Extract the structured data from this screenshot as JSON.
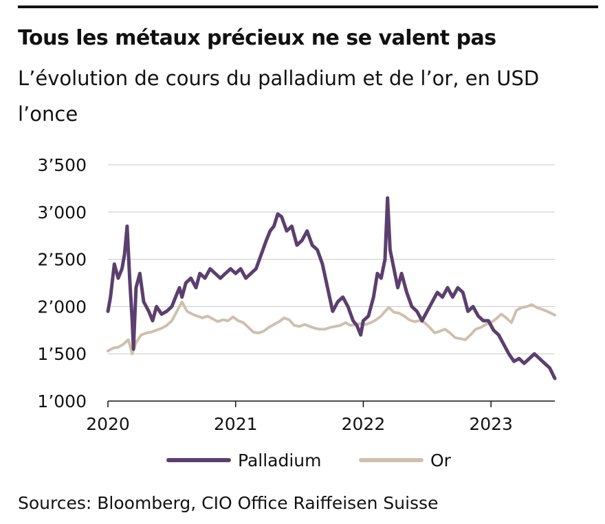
{
  "title": "Tous les métaux précieux ne se valent pas",
  "subtitle": "L’évolution de cours du palladium et de l’or, en USD l’once",
  "source": "Sources: Bloomberg, CIO Office Raiffeisen Suisse",
  "chart_data": {
    "type": "line",
    "title": "Tous les métaux précieux ne se valent pas",
    "subtitle": "L’évolution de cours du palladium et de l’or, en USD l’once",
    "xlabel": "",
    "ylabel": "",
    "xlim": [
      2020.0,
      2023.5
    ],
    "ylim": [
      1000,
      3500
    ],
    "xticks": [
      {
        "value": 2020,
        "label": "2020"
      },
      {
        "value": 2021,
        "label": "2021"
      },
      {
        "value": 2022,
        "label": "2022"
      },
      {
        "value": 2023,
        "label": "2023"
      }
    ],
    "yticks": [
      {
        "value": 1000,
        "label": "1’000"
      },
      {
        "value": 1500,
        "label": "1’500"
      },
      {
        "value": 2000,
        "label": "2’000"
      },
      {
        "value": 2500,
        "label": "2’500"
      },
      {
        "value": 3000,
        "label": "3’000"
      },
      {
        "value": 3500,
        "label": "3’500"
      }
    ],
    "grid": "horizontal",
    "legend_position": "bottom",
    "series": [
      {
        "name": "Palladium",
        "color": "#5b3f6e",
        "points": [
          [
            2020.0,
            1950
          ],
          [
            2020.02,
            2100
          ],
          [
            2020.05,
            2450
          ],
          [
            2020.08,
            2300
          ],
          [
            2020.11,
            2400
          ],
          [
            2020.13,
            2550
          ],
          [
            2020.15,
            2850
          ],
          [
            2020.17,
            2300
          ],
          [
            2020.19,
            1850
          ],
          [
            2020.2,
            1550
          ],
          [
            2020.22,
            2200
          ],
          [
            2020.25,
            2350
          ],
          [
            2020.28,
            2050
          ],
          [
            2020.32,
            1950
          ],
          [
            2020.35,
            1850
          ],
          [
            2020.38,
            2000
          ],
          [
            2020.42,
            1920
          ],
          [
            2020.46,
            1950
          ],
          [
            2020.5,
            2000
          ],
          [
            2020.53,
            2100
          ],
          [
            2020.56,
            2200
          ],
          [
            2020.58,
            2100
          ],
          [
            2020.61,
            2250
          ],
          [
            2020.65,
            2300
          ],
          [
            2020.69,
            2200
          ],
          [
            2020.72,
            2350
          ],
          [
            2020.76,
            2300
          ],
          [
            2020.8,
            2400
          ],
          [
            2020.84,
            2350
          ],
          [
            2020.88,
            2300
          ],
          [
            2020.92,
            2350
          ],
          [
            2020.96,
            2400
          ],
          [
            2021.0,
            2350
          ],
          [
            2021.04,
            2400
          ],
          [
            2021.08,
            2300
          ],
          [
            2021.12,
            2350
          ],
          [
            2021.16,
            2400
          ],
          [
            2021.2,
            2550
          ],
          [
            2021.24,
            2700
          ],
          [
            2021.27,
            2800
          ],
          [
            2021.3,
            2850
          ],
          [
            2021.33,
            2980
          ],
          [
            2021.36,
            2950
          ],
          [
            2021.4,
            2800
          ],
          [
            2021.44,
            2850
          ],
          [
            2021.48,
            2650
          ],
          [
            2021.52,
            2700
          ],
          [
            2021.56,
            2800
          ],
          [
            2021.6,
            2650
          ],
          [
            2021.64,
            2600
          ],
          [
            2021.68,
            2450
          ],
          [
            2021.72,
            2200
          ],
          [
            2021.76,
            1950
          ],
          [
            2021.8,
            2050
          ],
          [
            2021.84,
            2100
          ],
          [
            2021.88,
            2000
          ],
          [
            2021.92,
            1850
          ],
          [
            2021.95,
            1800
          ],
          [
            2021.98,
            1700
          ],
          [
            2022.0,
            1850
          ],
          [
            2022.04,
            1900
          ],
          [
            2022.08,
            2100
          ],
          [
            2022.11,
            2350
          ],
          [
            2022.14,
            2300
          ],
          [
            2022.17,
            2500
          ],
          [
            2022.19,
            3150
          ],
          [
            2022.21,
            2600
          ],
          [
            2022.24,
            2400
          ],
          [
            2022.27,
            2200
          ],
          [
            2022.3,
            2350
          ],
          [
            2022.34,
            2150
          ],
          [
            2022.38,
            2000
          ],
          [
            2022.42,
            1950
          ],
          [
            2022.46,
            1850
          ],
          [
            2022.5,
            1950
          ],
          [
            2022.54,
            2050
          ],
          [
            2022.58,
            2150
          ],
          [
            2022.62,
            2100
          ],
          [
            2022.66,
            2200
          ],
          [
            2022.7,
            2100
          ],
          [
            2022.74,
            2200
          ],
          [
            2022.78,
            2150
          ],
          [
            2022.82,
            1950
          ],
          [
            2022.86,
            2000
          ],
          [
            2022.9,
            1900
          ],
          [
            2022.94,
            1850
          ],
          [
            2022.98,
            1850
          ],
          [
            2023.02,
            1750
          ],
          [
            2023.06,
            1700
          ],
          [
            2023.1,
            1600
          ],
          [
            2023.14,
            1500
          ],
          [
            2023.18,
            1420
          ],
          [
            2023.22,
            1450
          ],
          [
            2023.26,
            1400
          ],
          [
            2023.3,
            1450
          ],
          [
            2023.34,
            1500
          ],
          [
            2023.38,
            1450
          ],
          [
            2023.42,
            1400
          ],
          [
            2023.46,
            1350
          ],
          [
            2023.5,
            1240
          ]
        ]
      },
      {
        "name": "Or",
        "color": "#cfc0ae",
        "points": [
          [
            2020.0,
            1530
          ],
          [
            2020.04,
            1560
          ],
          [
            2020.08,
            1570
          ],
          [
            2020.12,
            1600
          ],
          [
            2020.16,
            1650
          ],
          [
            2020.19,
            1500
          ],
          [
            2020.22,
            1620
          ],
          [
            2020.26,
            1700
          ],
          [
            2020.3,
            1720
          ],
          [
            2020.34,
            1730
          ],
          [
            2020.38,
            1750
          ],
          [
            2020.42,
            1770
          ],
          [
            2020.46,
            1800
          ],
          [
            2020.5,
            1850
          ],
          [
            2020.54,
            1950
          ],
          [
            2020.58,
            2050
          ],
          [
            2020.62,
            1950
          ],
          [
            2020.66,
            1920
          ],
          [
            2020.7,
            1900
          ],
          [
            2020.74,
            1880
          ],
          [
            2020.78,
            1900
          ],
          [
            2020.82,
            1870
          ],
          [
            2020.86,
            1840
          ],
          [
            2020.9,
            1860
          ],
          [
            2020.94,
            1850
          ],
          [
            2020.98,
            1890
          ],
          [
            2021.02,
            1850
          ],
          [
            2021.06,
            1830
          ],
          [
            2021.1,
            1780
          ],
          [
            2021.14,
            1730
          ],
          [
            2021.18,
            1720
          ],
          [
            2021.22,
            1740
          ],
          [
            2021.26,
            1780
          ],
          [
            2021.3,
            1810
          ],
          [
            2021.34,
            1840
          ],
          [
            2021.38,
            1880
          ],
          [
            2021.42,
            1860
          ],
          [
            2021.46,
            1800
          ],
          [
            2021.5,
            1790
          ],
          [
            2021.54,
            1810
          ],
          [
            2021.58,
            1790
          ],
          [
            2021.62,
            1770
          ],
          [
            2021.66,
            1760
          ],
          [
            2021.7,
            1760
          ],
          [
            2021.74,
            1780
          ],
          [
            2021.78,
            1790
          ],
          [
            2021.82,
            1800
          ],
          [
            2021.86,
            1830
          ],
          [
            2021.9,
            1800
          ],
          [
            2021.94,
            1810
          ],
          [
            2021.98,
            1820
          ],
          [
            2022.02,
            1810
          ],
          [
            2022.06,
            1830
          ],
          [
            2022.1,
            1860
          ],
          [
            2022.14,
            1900
          ],
          [
            2022.17,
            1950
          ],
          [
            2022.2,
            1990
          ],
          [
            2022.24,
            1940
          ],
          [
            2022.28,
            1930
          ],
          [
            2022.32,
            1900
          ],
          [
            2022.36,
            1860
          ],
          [
            2022.4,
            1840
          ],
          [
            2022.44,
            1850
          ],
          [
            2022.48,
            1830
          ],
          [
            2022.52,
            1780
          ],
          [
            2022.56,
            1720
          ],
          [
            2022.6,
            1740
          ],
          [
            2022.64,
            1760
          ],
          [
            2022.68,
            1720
          ],
          [
            2022.72,
            1670
          ],
          [
            2022.76,
            1660
          ],
          [
            2022.8,
            1650
          ],
          [
            2022.84,
            1700
          ],
          [
            2022.88,
            1760
          ],
          [
            2022.92,
            1780
          ],
          [
            2022.96,
            1810
          ],
          [
            2023.0,
            1830
          ],
          [
            2023.04,
            1870
          ],
          [
            2023.08,
            1920
          ],
          [
            2023.12,
            1880
          ],
          [
            2023.16,
            1830
          ],
          [
            2023.2,
            1960
          ],
          [
            2023.24,
            1990
          ],
          [
            2023.28,
            2000
          ],
          [
            2023.32,
            2020
          ],
          [
            2023.36,
            1990
          ],
          [
            2023.4,
            1970
          ],
          [
            2023.44,
            1950
          ],
          [
            2023.5,
            1910
          ]
        ]
      }
    ]
  }
}
